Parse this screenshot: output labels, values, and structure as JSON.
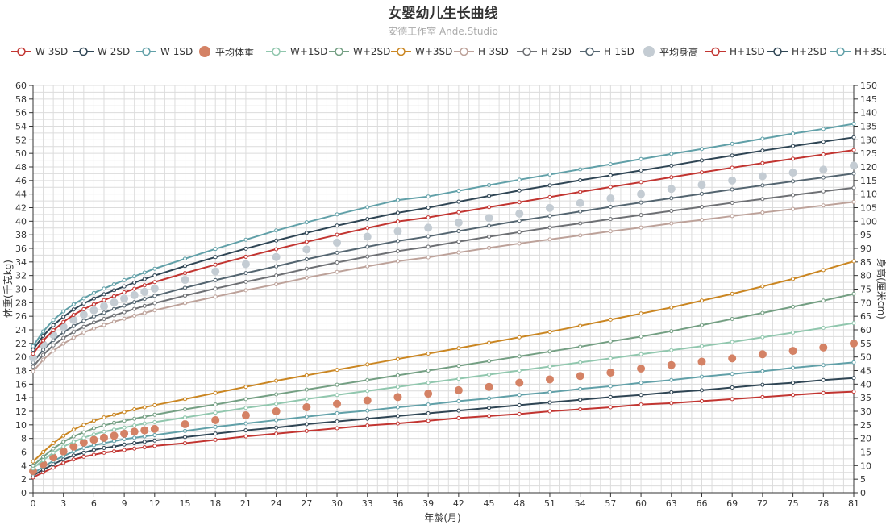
{
  "chart_data": {
    "type": "line",
    "title": "女婴幼儿生长曲线",
    "subtitle": "安德工作室 Ande.Studio",
    "xlabel": "年龄(月)",
    "ylabel_left": "体重(千克kg)",
    "ylabel_right": "身高(厘米cm)",
    "xlim": [
      0,
      81
    ],
    "ylim_left": [
      0,
      60
    ],
    "ylim_right": [
      0,
      150
    ],
    "x_ticks": [
      0,
      3,
      6,
      9,
      12,
      15,
      18,
      21,
      24,
      27,
      30,
      33,
      36,
      39,
      42,
      45,
      48,
      51,
      54,
      57,
      60,
      63,
      66,
      69,
      72,
      75,
      78,
      81
    ],
    "y_left_ticks": [
      0,
      2,
      4,
      6,
      8,
      10,
      12,
      14,
      16,
      18,
      20,
      22,
      24,
      26,
      28,
      30,
      32,
      34,
      36,
      38,
      40,
      42,
      44,
      46,
      48,
      50,
      52,
      54,
      56,
      58,
      60
    ],
    "y_right_ticks": [
      0,
      5,
      10,
      15,
      20,
      25,
      30,
      35,
      40,
      45,
      50,
      55,
      60,
      65,
      70,
      75,
      80,
      85,
      90,
      95,
      100,
      105,
      110,
      115,
      120,
      125,
      130,
      135,
      140,
      145,
      150
    ],
    "grid": true,
    "legend_position": "top",
    "ages": [
      0,
      1,
      2,
      3,
      4,
      5,
      6,
      7,
      8,
      9,
      10,
      11,
      12,
      15,
      18,
      21,
      24,
      27,
      30,
      33,
      36,
      39,
      42,
      45,
      48,
      51,
      54,
      57,
      60,
      63,
      66,
      69,
      72,
      75,
      78,
      81
    ],
    "series": [
      {
        "name": "W-3SD",
        "axis": "left",
        "type": "line",
        "color": "#c23531",
        "values": [
          2.26,
          3.0,
          3.7,
          4.4,
          4.9,
          5.3,
          5.6,
          5.9,
          6.1,
          6.3,
          6.5,
          6.7,
          6.9,
          7.3,
          7.8,
          8.3,
          8.7,
          9.1,
          9.5,
          9.9,
          10.2,
          10.6,
          11.0,
          11.3,
          11.6,
          12.0,
          12.3,
          12.6,
          13.0,
          13.2,
          13.5,
          13.8,
          14.1,
          14.4,
          14.7,
          14.9
        ]
      },
      {
        "name": "W-2SD",
        "axis": "left",
        "type": "line",
        "color": "#2f4554",
        "values": [
          2.54,
          3.4,
          4.2,
          4.9,
          5.5,
          5.9,
          6.3,
          6.6,
          6.8,
          7.1,
          7.3,
          7.5,
          7.7,
          8.2,
          8.7,
          9.2,
          9.6,
          10.1,
          10.5,
          10.9,
          11.3,
          11.7,
          12.1,
          12.5,
          12.9,
          13.3,
          13.7,
          14.1,
          14.4,
          14.8,
          15.1,
          15.5,
          15.9,
          16.2,
          16.6,
          16.9
        ]
      },
      {
        "name": "W-1SD",
        "axis": "left",
        "type": "line",
        "color": "#61a0a8",
        "values": [
          2.85,
          3.8,
          4.7,
          5.4,
          6.1,
          6.6,
          7.0,
          7.3,
          7.6,
          7.9,
          8.1,
          8.3,
          8.5,
          9.1,
          9.7,
          10.2,
          10.7,
          11.2,
          11.7,
          12.1,
          12.6,
          13.0,
          13.5,
          13.9,
          14.4,
          14.8,
          15.3,
          15.7,
          16.2,
          16.6,
          17.1,
          17.5,
          17.9,
          18.4,
          18.8,
          19.2
        ]
      },
      {
        "name": "平均体重",
        "axis": "left",
        "type": "scatter",
        "color": "#d48265",
        "values": [
          3.2,
          4.2,
          5.2,
          6.1,
          6.8,
          7.4,
          7.8,
          8.1,
          8.4,
          8.7,
          9.0,
          9.2,
          9.4,
          10.1,
          10.7,
          11.4,
          12.0,
          12.6,
          13.1,
          13.6,
          14.1,
          14.6,
          15.1,
          15.6,
          16.2,
          16.7,
          17.2,
          17.7,
          18.3,
          18.8,
          19.3,
          19.8,
          20.4,
          20.9,
          21.4,
          22.0
        ]
      },
      {
        "name": "W+1SD",
        "axis": "left",
        "type": "line",
        "color": "#91c7ae",
        "values": [
          3.6,
          4.8,
          5.9,
          6.8,
          7.5,
          8.1,
          8.6,
          9.0,
          9.3,
          9.6,
          9.9,
          10.2,
          10.4,
          11.1,
          11.8,
          12.5,
          13.1,
          13.8,
          14.4,
          15.0,
          15.6,
          16.2,
          16.8,
          17.4,
          18.0,
          18.6,
          19.2,
          19.8,
          20.4,
          21.0,
          21.6,
          22.2,
          22.9,
          23.6,
          24.3,
          25.0
        ]
      },
      {
        "name": "W+2SD",
        "axis": "left",
        "type": "line",
        "color": "#749f83",
        "values": [
          4.0,
          5.3,
          6.5,
          7.5,
          8.3,
          8.9,
          9.5,
          9.9,
          10.3,
          10.6,
          10.9,
          11.2,
          11.5,
          12.3,
          13.0,
          13.8,
          14.5,
          15.2,
          15.9,
          16.6,
          17.3,
          18.0,
          18.7,
          19.4,
          20.1,
          20.8,
          21.5,
          22.3,
          23.0,
          23.8,
          24.7,
          25.6,
          26.5,
          27.4,
          28.3,
          29.3
        ]
      },
      {
        "name": "W+3SD",
        "axis": "left",
        "type": "line",
        "color": "#ca8622",
        "values": [
          4.6,
          6.0,
          7.3,
          8.4,
          9.3,
          10.0,
          10.6,
          11.1,
          11.5,
          11.9,
          12.3,
          12.6,
          12.9,
          13.8,
          14.7,
          15.6,
          16.5,
          17.3,
          18.1,
          18.9,
          19.7,
          20.5,
          21.3,
          22.1,
          22.9,
          23.7,
          24.6,
          25.5,
          26.4,
          27.3,
          28.3,
          29.3,
          30.4,
          31.5,
          32.8,
          34.1
        ]
      },
      {
        "name": "H-3SD",
        "axis": "right",
        "type": "line",
        "color": "#bda29a",
        "values": [
          44.7,
          49.0,
          52.3,
          54.9,
          57.1,
          59.0,
          60.5,
          61.8,
          63.0,
          64.1,
          65.2,
          66.2,
          67.2,
          69.8,
          72.2,
          74.6,
          76.8,
          79.2,
          81.3,
          83.4,
          85.3,
          86.7,
          88.5,
          90.2,
          91.8,
          93.3,
          94.8,
          96.3,
          97.7,
          99.2,
          100.5,
          101.9,
          103.2,
          104.5,
          105.8,
          107.1
        ]
      },
      {
        "name": "H-2SD",
        "axis": "right",
        "type": "line",
        "color": "#6e7074",
        "values": [
          46.4,
          50.8,
          54.3,
          57.0,
          59.2,
          61.1,
          62.7,
          64.0,
          65.3,
          66.5,
          67.7,
          68.8,
          69.8,
          72.6,
          75.2,
          77.7,
          80.0,
          82.5,
          84.8,
          87.0,
          89.0,
          90.6,
          92.5,
          94.3,
          96.0,
          97.7,
          99.2,
          100.8,
          102.3,
          103.8,
          105.3,
          106.8,
          108.2,
          109.6,
          111.0,
          112.3
        ]
      },
      {
        "name": "H-1SD",
        "axis": "right",
        "type": "line",
        "color": "#546570",
        "values": [
          48.0,
          52.7,
          56.2,
          59.1,
          61.4,
          63.3,
          64.9,
          66.3,
          67.7,
          68.9,
          70.2,
          71.4,
          72.5,
          75.5,
          78.3,
          80.9,
          83.4,
          86.0,
          88.4,
          90.6,
          92.7,
          94.4,
          96.4,
          98.3,
          100.2,
          101.9,
          103.6,
          105.3,
          106.9,
          108.5,
          110.1,
          111.7,
          113.2,
          114.7,
          116.1,
          117.6
        ]
      },
      {
        "name": "平均身高",
        "axis": "right",
        "type": "scatter",
        "color": "#c4ccd3",
        "values": [
          49.7,
          54.6,
          58.2,
          61.1,
          63.6,
          65.6,
          67.2,
          68.7,
          70.1,
          71.5,
          72.8,
          74.0,
          75.2,
          78.4,
          81.5,
          84.2,
          86.8,
          89.6,
          92.1,
          94.3,
          96.3,
          97.6,
          99.5,
          101.2,
          102.8,
          104.9,
          106.7,
          108.4,
          110.0,
          111.9,
          113.4,
          115.0,
          116.6,
          117.9,
          119.0,
          120.5
        ]
      },
      {
        "name": "H+1SD",
        "axis": "right",
        "type": "line",
        "color": "#c23531",
        "values": [
          51.2,
          56.1,
          59.8,
          62.9,
          65.5,
          67.6,
          69.4,
          70.9,
          72.4,
          73.8,
          75.1,
          76.4,
          77.6,
          80.9,
          84.0,
          86.9,
          89.7,
          92.4,
          95.0,
          97.5,
          99.9,
          101.4,
          103.3,
          105.2,
          107.0,
          108.9,
          110.8,
          112.6,
          114.4,
          116.2,
          118.0,
          119.7,
          121.4,
          123.0,
          124.6,
          126.2
        ]
      },
      {
        "name": "H+2SD",
        "axis": "right",
        "type": "line",
        "color": "#2f4554",
        "values": [
          52.7,
          57.8,
          61.7,
          64.8,
          67.5,
          69.7,
          71.5,
          73.1,
          74.6,
          76.0,
          77.4,
          78.7,
          80.0,
          83.5,
          86.8,
          89.9,
          92.9,
          95.7,
          98.4,
          100.8,
          103.1,
          105.0,
          107.2,
          109.3,
          111.3,
          113.2,
          115.1,
          116.9,
          118.7,
          120.5,
          122.4,
          124.2,
          126.0,
          127.7,
          129.3,
          130.9
        ]
      },
      {
        "name": "H+3SD",
        "axis": "right",
        "type": "line",
        "color": "#61a0a8",
        "values": [
          54.0,
          59.4,
          63.6,
          66.8,
          69.4,
          71.6,
          73.6,
          75.2,
          76.8,
          78.3,
          79.7,
          81.1,
          82.5,
          86.2,
          89.8,
          93.2,
          96.6,
          99.6,
          102.5,
          105.2,
          107.8,
          109.1,
          111.2,
          113.3,
          115.3,
          117.2,
          119.1,
          121.0,
          122.9,
          124.8,
          126.6,
          128.5,
          130.4,
          132.3,
          134.0,
          135.9
        ]
      }
    ]
  }
}
